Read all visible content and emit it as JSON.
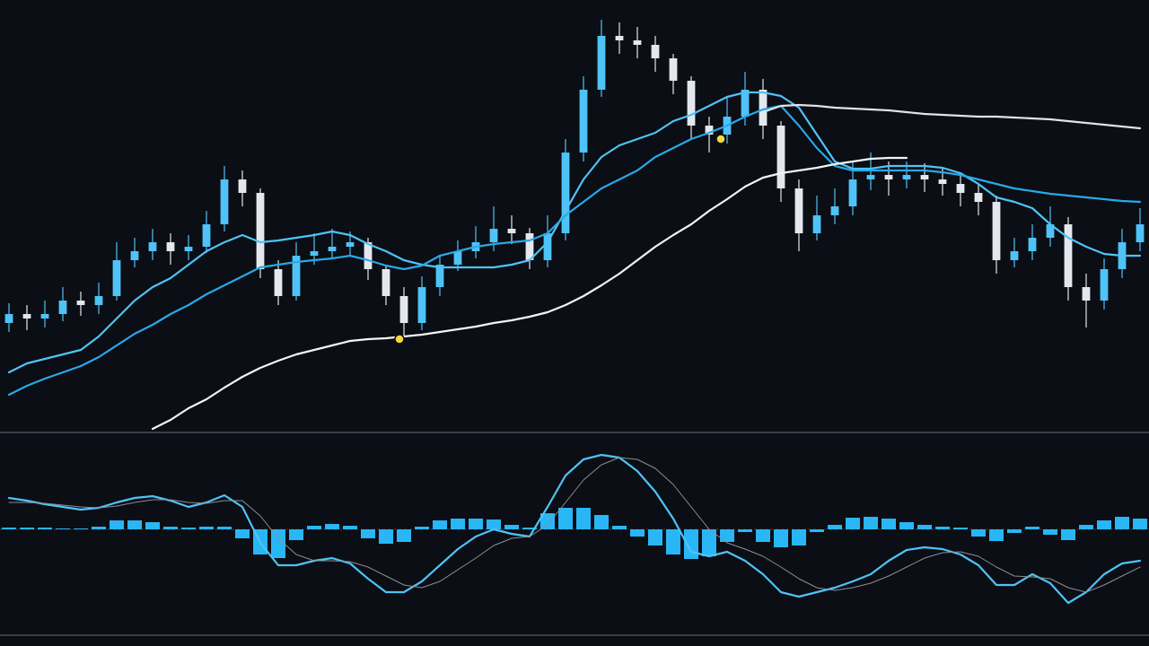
{
  "chart_data": [
    {
      "type": "candlestick",
      "ylim": [
        0,
        470
      ],
      "open": [
        120,
        130,
        125,
        130,
        145,
        140,
        150,
        190,
        200,
        210,
        200,
        205,
        230,
        280,
        265,
        180,
        150,
        195,
        200,
        205,
        210,
        180,
        150,
        120,
        160,
        185,
        200,
        210,
        225,
        220,
        190,
        220,
        310,
        380,
        440,
        435,
        430,
        415,
        390,
        340,
        330,
        350,
        380,
        340,
        270,
        220,
        240,
        250,
        280,
        285,
        280,
        285,
        280,
        275,
        265,
        255,
        190,
        200,
        215,
        230,
        160,
        145,
        180,
        210
      ],
      "high": [
        142,
        140,
        145,
        160,
        155,
        165,
        210,
        215,
        225,
        220,
        218,
        245,
        295,
        290,
        270,
        190,
        210,
        220,
        225,
        222,
        215,
        185,
        160,
        172,
        195,
        212,
        228,
        250,
        240,
        226,
        240,
        325,
        395,
        458,
        455,
        450,
        440,
        420,
        395,
        350,
        372,
        400,
        392,
        345,
        280,
        262,
        270,
        300,
        310,
        300,
        300,
        298,
        292,
        285,
        275,
        262,
        215,
        230,
        250,
        238,
        175,
        192,
        225,
        248
      ],
      "low": [
        110,
        112,
        115,
        122,
        128,
        130,
        145,
        182,
        190,
        185,
        190,
        198,
        222,
        250,
        170,
        140,
        145,
        185,
        192,
        195,
        168,
        140,
        105,
        112,
        150,
        178,
        192,
        200,
        208,
        180,
        182,
        212,
        300,
        372,
        420,
        415,
        400,
        375,
        325,
        310,
        320,
        340,
        325,
        255,
        200,
        212,
        230,
        240,
        268,
        262,
        270,
        266,
        262,
        250,
        240,
        175,
        182,
        190,
        205,
        145,
        115,
        135,
        170,
        200
      ],
      "close": [
        130,
        125,
        130,
        145,
        140,
        150,
        190,
        200,
        210,
        200,
        205,
        230,
        280,
        265,
        180,
        150,
        195,
        200,
        205,
        210,
        180,
        150,
        120,
        160,
        185,
        200,
        210,
        225,
        220,
        190,
        220,
        310,
        380,
        440,
        435,
        430,
        415,
        390,
        340,
        330,
        350,
        380,
        340,
        270,
        220,
        240,
        250,
        280,
        285,
        280,
        285,
        280,
        275,
        265,
        255,
        190,
        200,
        215,
        230,
        160,
        145,
        180,
        210,
        230
      ],
      "up_color": "#4fc3f7",
      "down_color": "#e3e8ee",
      "series": [
        {
          "color": "#4fc3f7",
          "values": [
            65,
            75,
            80,
            85,
            90,
            105,
            125,
            145,
            160,
            170,
            185,
            200,
            210,
            218,
            210,
            212,
            215,
            218,
            222,
            218,
            208,
            200,
            190,
            185,
            182,
            182,
            182,
            182,
            185,
            190,
            210,
            245,
            280,
            305,
            318,
            325,
            332,
            345,
            352,
            362,
            372,
            377,
            377,
            373,
            360,
            330,
            300,
            292,
            292,
            295,
            295,
            295,
            293,
            287,
            275,
            260,
            255,
            248,
            230,
            215,
            205,
            197,
            195,
            195
          ]
        },
        {
          "color": "#29a8e8",
          "values": [
            40,
            50,
            58,
            65,
            72,
            82,
            95,
            108,
            118,
            130,
            140,
            152,
            162,
            172,
            182,
            185,
            188,
            190,
            192,
            195,
            190,
            184,
            180,
            184,
            195,
            200,
            205,
            208,
            210,
            212,
            220,
            240,
            255,
            270,
            280,
            290,
            305,
            315,
            325,
            332,
            340,
            350,
            358,
            362,
            340,
            315,
            295,
            290,
            290,
            290,
            290,
            290,
            288,
            285,
            280,
            275,
            270,
            267,
            264,
            262,
            260,
            258,
            256,
            255
          ]
        },
        {
          "color": "#f2f4f7",
          "values": [
            null,
            null,
            null,
            null,
            null,
            null,
            null,
            null,
            2,
            12,
            25,
            35,
            48,
            60,
            70,
            78,
            85,
            90,
            95,
            100,
            102,
            103,
            105,
            107,
            110,
            113,
            116,
            120,
            123,
            127,
            132,
            140,
            150,
            162,
            175,
            190,
            205,
            218,
            230,
            245,
            258,
            272,
            282,
            287,
            290,
            293,
            297,
            300,
            303,
            304,
            304,
            null,
            null,
            null,
            null,
            null,
            null,
            null,
            null,
            null,
            null,
            null,
            null,
            null
          ]
        },
        {
          "color": "#dfe3ea",
          "values": [
            null,
            null,
            null,
            null,
            null,
            null,
            null,
            null,
            null,
            null,
            null,
            null,
            null,
            null,
            null,
            null,
            null,
            null,
            null,
            null,
            null,
            null,
            null,
            null,
            null,
            null,
            null,
            null,
            null,
            null,
            null,
            null,
            null,
            null,
            null,
            null,
            null,
            null,
            null,
            null,
            null,
            null,
            355,
            362,
            363,
            362,
            360,
            359,
            358,
            357,
            355,
            353,
            352,
            351,
            350,
            350,
            349,
            348,
            347,
            345,
            343,
            341,
            339,
            337
          ]
        }
      ]
    },
    {
      "type": "macd",
      "ylim": [
        -110,
        100
      ],
      "color": "#29b6f6",
      "values": [
        2,
        2,
        2,
        1,
        1,
        3,
        10,
        10,
        8,
        3,
        2,
        3,
        3,
        -10,
        -28,
        -32,
        -12,
        4,
        6,
        4,
        -10,
        -16,
        -14,
        3,
        10,
        12,
        12,
        11,
        5,
        2,
        18,
        24,
        24,
        16,
        4,
        -8,
        -18,
        -28,
        -33,
        -30,
        -14,
        -3,
        -14,
        -20,
        -18,
        -3,
        5,
        13,
        14,
        12,
        8,
        5,
        3,
        2,
        -8,
        -13,
        -4,
        3,
        -6,
        -12,
        5,
        10,
        14,
        12
      ],
      "series": [
        {
          "color": "#4fc3f7",
          "values": [
            35,
            32,
            28,
            25,
            22,
            24,
            30,
            35,
            37,
            32,
            25,
            30,
            38,
            25,
            -15,
            -40,
            -40,
            -35,
            -32,
            -38,
            -55,
            -70,
            -70,
            -58,
            -40,
            -22,
            -8,
            0,
            -5,
            -8,
            25,
            60,
            78,
            83,
            80,
            65,
            42,
            12,
            -25,
            -30,
            -25,
            -35,
            -50,
            -70,
            -75,
            -70,
            -65,
            -58,
            -50,
            -35,
            -23,
            -20,
            -22,
            -28,
            -40,
            -62,
            -62,
            -50,
            -60,
            -82,
            -70,
            -50,
            -38,
            -35
          ]
        },
        {
          "color": "#8a8f96",
          "values": [
            30,
            30,
            29,
            27,
            25,
            24,
            26,
            30,
            33,
            33,
            30,
            29,
            32,
            32,
            15,
            -10,
            -28,
            -35,
            -35,
            -36,
            -42,
            -52,
            -62,
            -65,
            -58,
            -45,
            -32,
            -18,
            -10,
            -8,
            5,
            30,
            55,
            72,
            80,
            78,
            68,
            50,
            25,
            0,
            -15,
            -22,
            -30,
            -42,
            -55,
            -65,
            -68,
            -65,
            -60,
            -52,
            -42,
            -32,
            -26,
            -25,
            -30,
            -42,
            -52,
            -53,
            -55,
            -65,
            -70,
            -62,
            -52,
            -42
          ]
        }
      ]
    }
  ]
}
